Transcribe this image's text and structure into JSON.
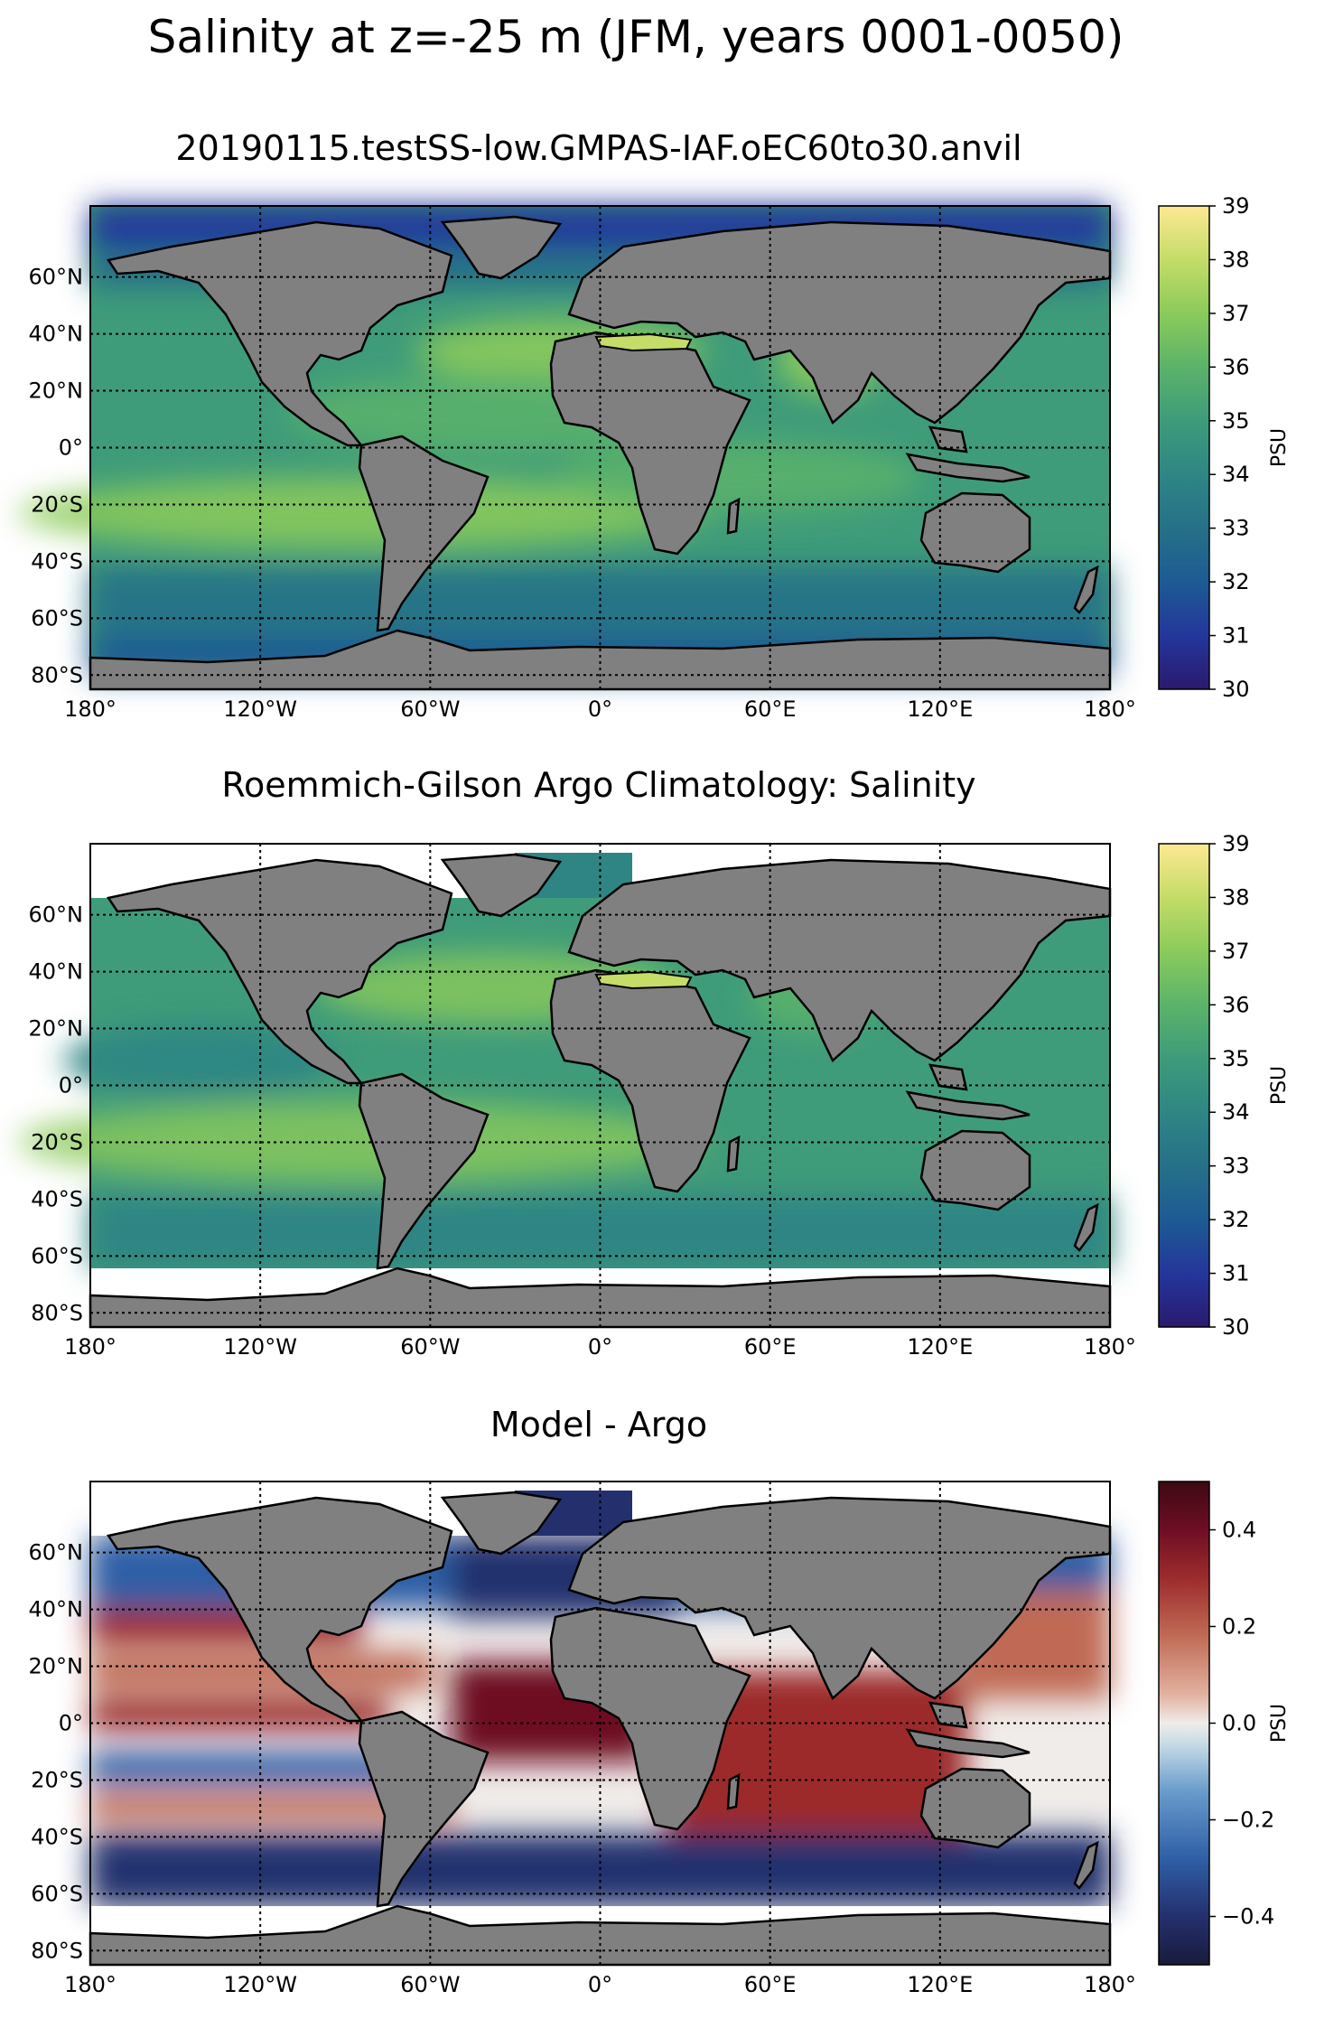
{
  "figure": {
    "suptitle": "Salinity at z=-25 m (JFM, years 0001-0050)"
  },
  "panels": [
    {
      "title": "20190115.testSS-low.GMPAS-IAF.oEC60to30.anvil",
      "colorbar": {
        "label": "PSU",
        "ticks": [
          "30",
          "31",
          "32",
          "33",
          "34",
          "35",
          "36",
          "37",
          "38",
          "39"
        ],
        "range": [
          30,
          39
        ],
        "cmap": "haline"
      }
    },
    {
      "title": "Roemmich-Gilson Argo Climatology: Salinity",
      "colorbar": {
        "label": "PSU",
        "ticks": [
          "30",
          "31",
          "32",
          "33",
          "34",
          "35",
          "36",
          "37",
          "38",
          "39"
        ],
        "range": [
          30,
          39
        ],
        "cmap": "haline"
      }
    },
    {
      "title": "Model - Argo",
      "colorbar": {
        "label": "PSU",
        "ticks": [
          "−0.4",
          "−0.2",
          "0.0",
          "0.2",
          "0.4"
        ],
        "range": [
          -0.5,
          0.5
        ],
        "cmap": "balance"
      }
    }
  ],
  "axes": {
    "lon_labels": [
      "180°",
      "120°W",
      "60°W",
      "0°",
      "60°E",
      "120°E",
      "180°"
    ],
    "lat_labels": [
      "60°N",
      "40°N",
      "20°N",
      "0°",
      "20°S",
      "40°S",
      "60°S",
      "80°S"
    ]
  },
  "colors": {
    "land": "#808080",
    "haline": [
      "#2a1a6e",
      "#24369b",
      "#1d5a94",
      "#257088",
      "#2e8584",
      "#3f9c7a",
      "#5cb469",
      "#8ccb5b",
      "#c5dc68",
      "#fde993"
    ],
    "balance": [
      "#191b3c",
      "#24306e",
      "#2f5fa6",
      "#6a9ccc",
      "#c9dde6",
      "#f0ecea",
      "#e2b1a0",
      "#c06b55",
      "#9c2c2c",
      "#6e0e24",
      "#3c0912"
    ]
  }
}
